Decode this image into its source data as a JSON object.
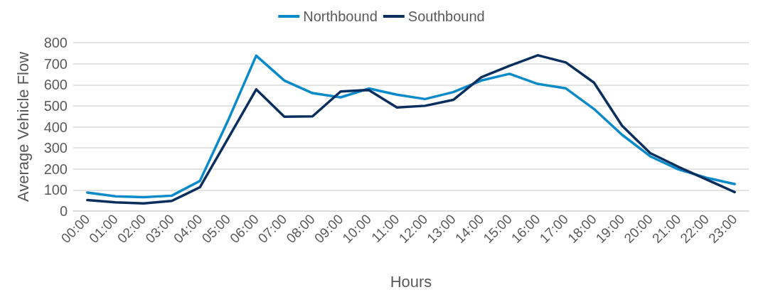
{
  "chart_data": {
    "type": "line",
    "xlabel": "Hours",
    "ylabel": "Average Vehicle Flow",
    "categories": [
      "00:00",
      "01:00",
      "02:00",
      "03:00",
      "04:00",
      "05:00",
      "06:00",
      "07:00",
      "08:00",
      "09:00",
      "10:00",
      "11:00",
      "12:00",
      "13:00",
      "14:00",
      "15:00",
      "16:00",
      "17:00",
      "18:00",
      "19:00",
      "20:00",
      "21:00",
      "22:00",
      "23:00"
    ],
    "series": [
      {
        "name": "Northbound",
        "color": "#0a8ac8",
        "values": [
          88,
          70,
          66,
          73,
          143,
          430,
          738,
          620,
          560,
          540,
          582,
          553,
          532,
          565,
          620,
          652,
          604,
          583,
          485,
          362,
          260,
          198,
          158,
          128
        ]
      },
      {
        "name": "Southbound",
        "color": "#0a2f5e",
        "values": [
          52,
          41,
          36,
          48,
          113,
          345,
          578,
          448,
          450,
          568,
          575,
          492,
          500,
          528,
          636,
          690,
          740,
          706,
          610,
          405,
          275,
          210,
          150,
          90
        ]
      }
    ],
    "ylim": [
      0,
      800
    ],
    "yticks": [
      0,
      100,
      200,
      300,
      400,
      500,
      600,
      700,
      800
    ],
    "grid": "y",
    "legend": "top",
    "marker": "none",
    "line_style": "solid"
  }
}
